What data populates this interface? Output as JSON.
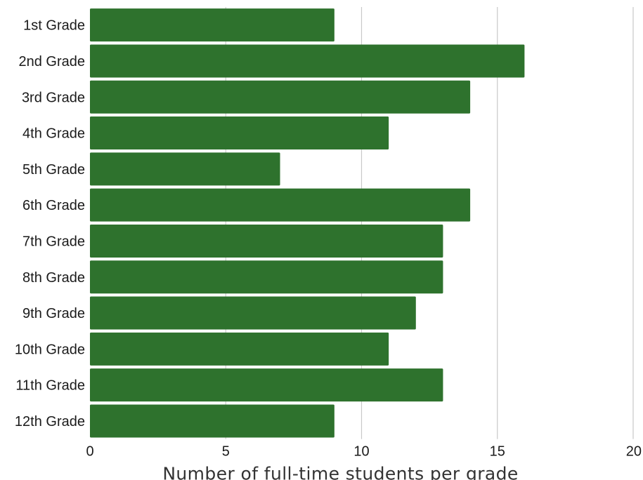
{
  "chart_data": {
    "type": "bar",
    "orientation": "horizontal",
    "categories": [
      "1st Grade",
      "2nd Grade",
      "3rd Grade",
      "4th Grade",
      "5th Grade",
      "6th Grade",
      "7th Grade",
      "8th Grade",
      "9th Grade",
      "10th Grade",
      "11th Grade",
      "12th Grade"
    ],
    "values": [
      9,
      16,
      14,
      11,
      7,
      14,
      13,
      13,
      12,
      11,
      13,
      9
    ],
    "xlabel": "Number of full-time students per grade",
    "ylabel": "",
    "xlim": [
      0,
      20
    ],
    "xticks": [
      "0",
      "5",
      "10",
      "15",
      "20"
    ],
    "grid": "vertical",
    "legend": "none",
    "colors": {
      "bar": "#2e722d",
      "grid": "#c8c8c8"
    }
  }
}
